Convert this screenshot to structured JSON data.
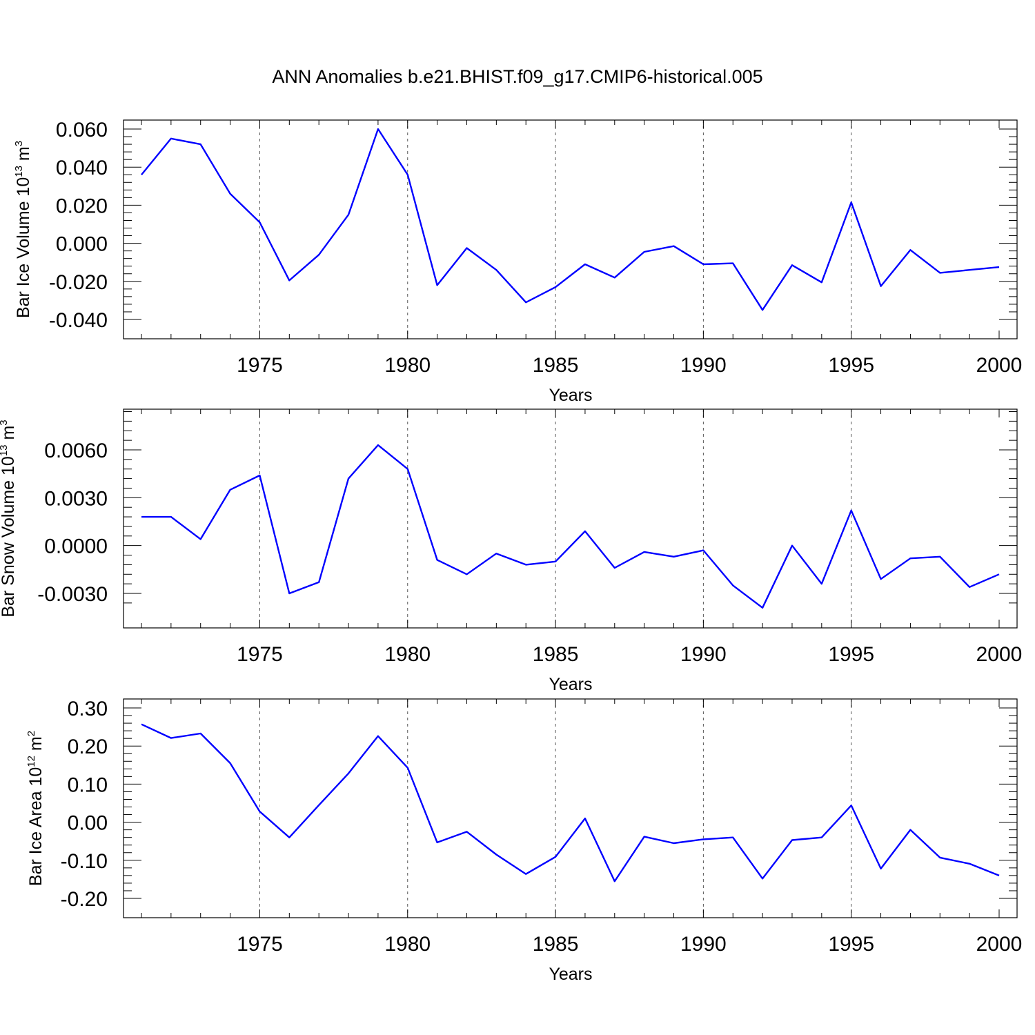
{
  "figure": {
    "title": "ANN Anomalies b.e21.BHIST.f09_g17.CMIP6-historical.005"
  },
  "chart_data": [
    {
      "type": "line",
      "xlabel": "Years",
      "ylabel": {
        "text": "Bar Ice Volume 10",
        "exp": "13",
        "unit": " m",
        "unit_exp": "3"
      },
      "xlim": [
        1971,
        2000
      ],
      "ylim": [
        -0.04,
        0.06
      ],
      "xticks": [
        1975,
        1980,
        1985,
        1990,
        1995,
        2000
      ],
      "yticks": [
        "0.060",
        "0.040",
        "0.020",
        "0.000",
        "-0.020",
        "-0.040"
      ],
      "yticks_values": [
        0.06,
        0.04,
        0.02,
        0.0,
        -0.02,
        -0.04
      ],
      "grid": "vertical dashed at major x ticks",
      "line_color": "#0000ff",
      "series": [
        {
          "x": [
            1971,
            1972,
            1973,
            1974,
            1975,
            1976,
            1977,
            1978,
            1979,
            1980,
            1981,
            1982,
            1983,
            1984,
            1985,
            1986,
            1987,
            1988,
            1989,
            1990,
            1991,
            1992,
            1993,
            1994,
            1995,
            1996,
            1997,
            1998,
            1999,
            2000
          ],
          "values": [
            0.036,
            0.055,
            0.052,
            0.026,
            0.011,
            -0.0195,
            -0.006,
            0.015,
            0.06,
            0.036,
            -0.022,
            -0.0025,
            -0.014,
            -0.031,
            -0.023,
            -0.011,
            -0.018,
            -0.0045,
            -0.0015,
            -0.011,
            -0.0105,
            -0.035,
            -0.0115,
            -0.0205,
            0.0215,
            -0.0225,
            -0.0035,
            -0.0155,
            -0.014,
            -0.0125
          ]
        }
      ]
    },
    {
      "type": "line",
      "xlabel": "Years",
      "ylabel": {
        "text": "Bar Snow Volume 10",
        "exp": "13",
        "unit": " m",
        "unit_exp": "3"
      },
      "xlim": [
        1971,
        2000
      ],
      "ylim": [
        -0.004,
        0.0087
      ],
      "xticks": [
        1975,
        1980,
        1985,
        1990,
        1995,
        2000
      ],
      "yticks": [
        "0.0060",
        "0.0030",
        "0.0000",
        "-0.0030"
      ],
      "yticks_values": [
        0.006,
        0.003,
        0.0,
        -0.003
      ],
      "grid": "vertical dashed at major x ticks",
      "line_color": "#0000ff",
      "series": [
        {
          "x": [
            1971,
            1972,
            1973,
            1974,
            1975,
            1976,
            1977,
            1978,
            1979,
            1980,
            1981,
            1982,
            1983,
            1984,
            1985,
            1986,
            1987,
            1988,
            1989,
            1990,
            1991,
            1992,
            1993,
            1994,
            1995,
            1996,
            1997,
            1998,
            1999,
            2000
          ],
          "values": [
            0.0018,
            0.0018,
            0.0004,
            0.0035,
            0.0044,
            -0.003,
            -0.0023,
            0.0042,
            0.0063,
            0.0048,
            -0.0009,
            -0.0018,
            -0.0005,
            -0.0012,
            -0.001,
            0.0009,
            -0.0014,
            -0.0004,
            -0.0007,
            -0.0003,
            -0.0025,
            -0.0039,
            0.0,
            -0.0024,
            0.0022,
            -0.0021,
            -0.0008,
            -0.0007,
            -0.0026,
            -0.0018
          ]
        }
      ]
    },
    {
      "type": "line",
      "xlabel": "Years",
      "ylabel": {
        "text": "Bar Ice Area 10",
        "exp": "12",
        "unit": " m",
        "unit_exp": "2"
      },
      "xlim": [
        1971,
        2000
      ],
      "ylim": [
        -0.2,
        0.3
      ],
      "xticks": [
        1975,
        1980,
        1985,
        1990,
        1995,
        2000
      ],
      "yticks": [
        "0.30",
        "0.20",
        "0.10",
        "0.00",
        "-0.10",
        "-0.20"
      ],
      "yticks_values": [
        0.3,
        0.2,
        0.1,
        0.0,
        -0.1,
        -0.2
      ],
      "grid": "vertical dashed at major x ticks",
      "line_color": "#0000ff",
      "series": [
        {
          "x": [
            1971,
            1972,
            1973,
            1974,
            1975,
            1976,
            1977,
            1978,
            1979,
            1980,
            1981,
            1982,
            1983,
            1984,
            1985,
            1986,
            1987,
            1988,
            1989,
            1990,
            1991,
            1992,
            1993,
            1994,
            1995,
            1996,
            1997,
            1998,
            1999,
            2000
          ],
          "values": [
            0.257,
            0.221,
            0.233,
            0.155,
            0.028,
            -0.04,
            0.045,
            0.128,
            0.226,
            0.143,
            -0.053,
            -0.025,
            -0.085,
            -0.136,
            -0.091,
            0.01,
            -0.155,
            -0.038,
            -0.055,
            -0.045,
            -0.04,
            -0.148,
            -0.047,
            -0.04,
            0.044,
            -0.122,
            -0.02,
            -0.093,
            -0.109,
            -0.14
          ]
        }
      ]
    }
  ]
}
